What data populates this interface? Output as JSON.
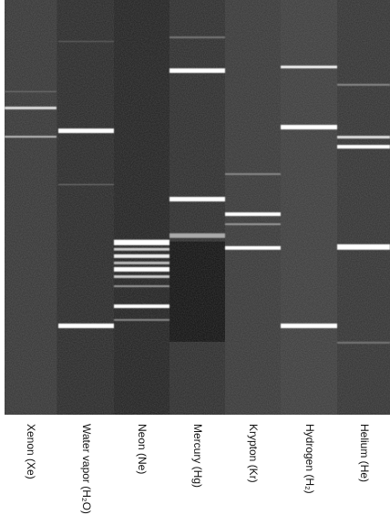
{
  "labels": [
    "Xenon (Xe)",
    "Water vapor (H₂O)",
    "Neon (Ne)",
    "Mercury (Hg)",
    "Krypton (Kr)",
    "Hydrogen (H₂)",
    "Helium (He)"
  ]
}
